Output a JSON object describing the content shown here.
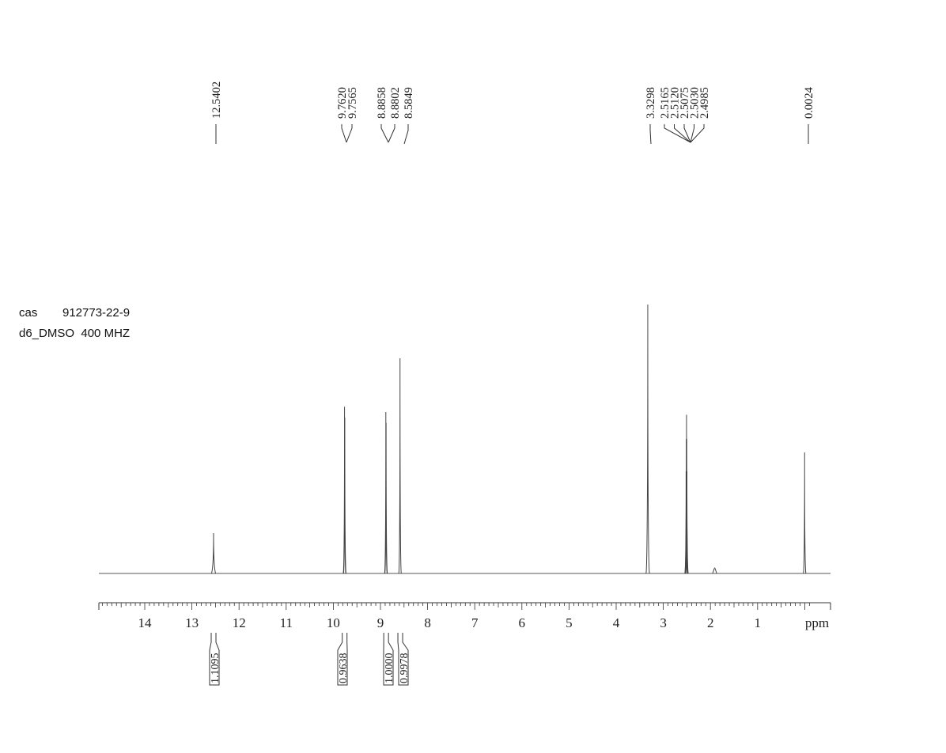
{
  "sample": {
    "cas_label": "cas",
    "cas_value": "912773-22-9",
    "solvent_label": "d6_DMSO",
    "frequency": "400 MHZ"
  },
  "chart_data": {
    "type": "line",
    "title": "",
    "xlabel": "ppm",
    "ylabel": "",
    "x_reversed": true,
    "xlim": [
      15.0,
      -0.5
    ],
    "ylim": [
      0,
      1.0
    ],
    "grid": false,
    "legend": "none",
    "x_ticks": [
      14,
      13,
      12,
      11,
      10,
      9,
      8,
      7,
      6,
      5,
      4,
      3,
      2,
      1
    ],
    "x_tick_labels": [
      "14",
      "13",
      "12",
      "11",
      "10",
      "9",
      "8",
      "7",
      "6",
      "5",
      "4",
      "3",
      "2",
      "1"
    ],
    "peaks": [
      {
        "ppm": 12.5402,
        "height": 0.15
      },
      {
        "ppm": 9.762,
        "height": 0.62
      },
      {
        "ppm": 9.7565,
        "height": 0.58
      },
      {
        "ppm": 8.8858,
        "height": 0.6
      },
      {
        "ppm": 8.8802,
        "height": 0.56
      },
      {
        "ppm": 8.5849,
        "height": 0.8
      },
      {
        "ppm": 3.3298,
        "height": 1.0
      },
      {
        "ppm": 2.5165,
        "height": 0.38
      },
      {
        "ppm": 2.512,
        "height": 0.5
      },
      {
        "ppm": 2.5075,
        "height": 0.59
      },
      {
        "ppm": 2.503,
        "height": 0.5
      },
      {
        "ppm": 2.4985,
        "height": 0.38
      },
      {
        "ppm": 1.91,
        "height": 0.02
      },
      {
        "ppm": 0.0024,
        "height": 0.45
      }
    ],
    "peak_labels": [
      {
        "text": "12.5402",
        "ppm": 12.5402
      },
      {
        "text": "9.7620",
        "ppm": 9.762
      },
      {
        "text": "9.7565",
        "ppm": 9.7565
      },
      {
        "text": "8.8858",
        "ppm": 8.8858
      },
      {
        "text": "8.8802",
        "ppm": 8.8802
      },
      {
        "text": "8.5849",
        "ppm": 8.5849
      },
      {
        "text": "3.3298",
        "ppm": 3.3298
      },
      {
        "text": "2.5165",
        "ppm": 2.5165
      },
      {
        "text": "2.5120",
        "ppm": 2.512
      },
      {
        "text": "2.5075",
        "ppm": 2.5075
      },
      {
        "text": "2.5030",
        "ppm": 2.503
      },
      {
        "text": "2.4985",
        "ppm": 2.4985
      },
      {
        "text": "0.0024",
        "ppm": 0.0024
      }
    ],
    "integrals": [
      {
        "text": "1.1095",
        "ppm": 12.54
      },
      {
        "text": "0.9638",
        "ppm": 9.76
      },
      {
        "text": "1.0000",
        "ppm": 8.88
      },
      {
        "text": "0.9978",
        "ppm": 8.58
      }
    ]
  }
}
